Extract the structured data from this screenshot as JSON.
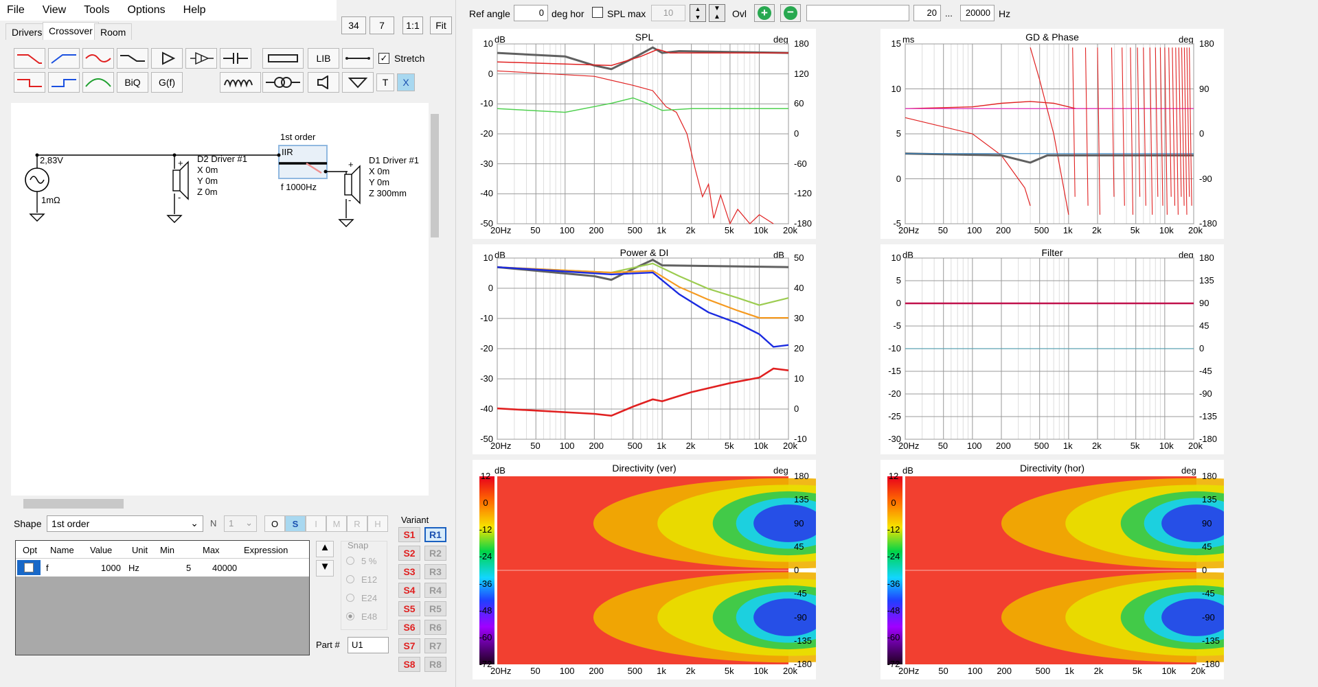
{
  "menu": [
    "File",
    "View",
    "Tools",
    "Options",
    "Help"
  ],
  "tabs": [
    "Drivers",
    "Crossover",
    "Room"
  ],
  "toolbar_top": {
    "v1": "34",
    "v2": "7",
    "ratio": "1:1",
    "fit": "Fit"
  },
  "palette": {
    "lib": "LIB",
    "biq": "BiQ",
    "gf": "G(f)",
    "t": "T",
    "x": "X",
    "stretch": "Stretch"
  },
  "schematic": {
    "source_voltage": "2,83V",
    "source_r": "1mΩ",
    "d2": {
      "name": "D2 Driver #1",
      "x": "X 0m",
      "y": "Y 0m",
      "z": "Z 0m"
    },
    "filter": {
      "order": "1st order",
      "type": "IIR",
      "freq": "f   1000Hz"
    },
    "d1": {
      "name": "D1 Driver #1",
      "x": "X 0m",
      "y": "Y 0m",
      "z": "Z 300mm"
    },
    "plus": "+",
    "minus": "-"
  },
  "shape": {
    "label": "Shape",
    "value": "1st order",
    "n_label": "N",
    "n_value": "1",
    "btns": [
      "O",
      "S",
      "I",
      "M",
      "R",
      "H"
    ]
  },
  "table": {
    "headers": [
      "Opt",
      "Name",
      "Value",
      "Unit",
      "Min",
      "Max",
      "Expression"
    ],
    "row": {
      "name": "f",
      "value": "1000",
      "unit": "Hz",
      "min": "5",
      "max": "40000",
      "expr": ""
    }
  },
  "snap": {
    "label": "Snap",
    "options": [
      "5 %",
      "E12",
      "E24",
      "E48"
    ]
  },
  "variant": {
    "label": "Variant",
    "s": [
      "S1",
      "S2",
      "S3",
      "S4",
      "S5",
      "S6",
      "S7",
      "S8"
    ],
    "r": [
      "R1",
      "R2",
      "R3",
      "R4",
      "R5",
      "R6",
      "R7",
      "R8"
    ]
  },
  "part": {
    "label": "Part #",
    "value": "U1"
  },
  "topbar": {
    "ref_angle_label": "Ref angle",
    "ref_angle": "0",
    "deg_hor": "deg hor",
    "spl_max_label": "SPL max",
    "spl_max": "10",
    "ovl": "Ovl",
    "f_from": "20",
    "ellipsis": "...",
    "f_to": "20000",
    "hz": "Hz"
  },
  "panels": {
    "spl": {
      "title": "SPL",
      "unit_l": "dB",
      "unit_r": "deg",
      "y_left": [
        "10",
        "0",
        "-10",
        "-20",
        "-30",
        "-40",
        "-50"
      ],
      "y_right": [
        "180",
        "120",
        "60",
        "0",
        "-60",
        "-120",
        "-180"
      ]
    },
    "gd": {
      "title": "GD & Phase",
      "unit_l": "ms",
      "unit_r": "deg",
      "y_left": [
        "15",
        "10",
        "5",
        "0",
        "-5"
      ],
      "y_right": [
        "180",
        "90",
        "0",
        "-90",
        "-180"
      ]
    },
    "power": {
      "title": "Power & DI",
      "unit_l": "dB",
      "unit_r": "dB",
      "y_left": [
        "10",
        "0",
        "-10",
        "-20",
        "-30",
        "-40",
        "-50"
      ],
      "y_right": [
        "50",
        "40",
        "30",
        "20",
        "10",
        "0",
        "-10"
      ]
    },
    "filter": {
      "title": "Filter",
      "unit_l": "dB",
      "unit_r": "deg",
      "y_left": [
        "10",
        "5",
        "0",
        "-5",
        "-10",
        "-15",
        "-20",
        "-25",
        "-30"
      ],
      "y_right": [
        "180",
        "135",
        "90",
        "45",
        "0",
        "-45",
        "-90",
        "-135",
        "-180"
      ]
    },
    "dirv": {
      "title": "Directivity (ver)",
      "unit_l": "dB",
      "unit_r": "deg",
      "y_right": [
        "180",
        "135",
        "90",
        "45",
        "0",
        "-45",
        "-90",
        "-135",
        "-180"
      ]
    },
    "dirh": {
      "title": "Directivity (hor)",
      "unit_l": "dB",
      "unit_r": "deg",
      "y_right": [
        "180",
        "135",
        "90",
        "45",
        "0",
        "-45",
        "-90",
        "-135",
        "-180"
      ]
    },
    "colorbar": [
      "12",
      "0",
      "-12",
      "-24",
      "-36",
      "-48",
      "-60",
      "-72"
    ],
    "x_ticks": [
      "20Hz",
      "50",
      "100",
      "200",
      "500",
      "1k",
      "2k",
      "5k",
      "10k",
      "20k"
    ]
  },
  "colors": {
    "red": "#e02020",
    "grey": "#606060",
    "green": "#50d050",
    "blue": "#1a2ae0",
    "orange": "#f59a20",
    "lgreen": "#9ccc50",
    "magenta": "#e040c0",
    "teal": "#5aa0b0",
    "wine": "#c0104a"
  }
}
